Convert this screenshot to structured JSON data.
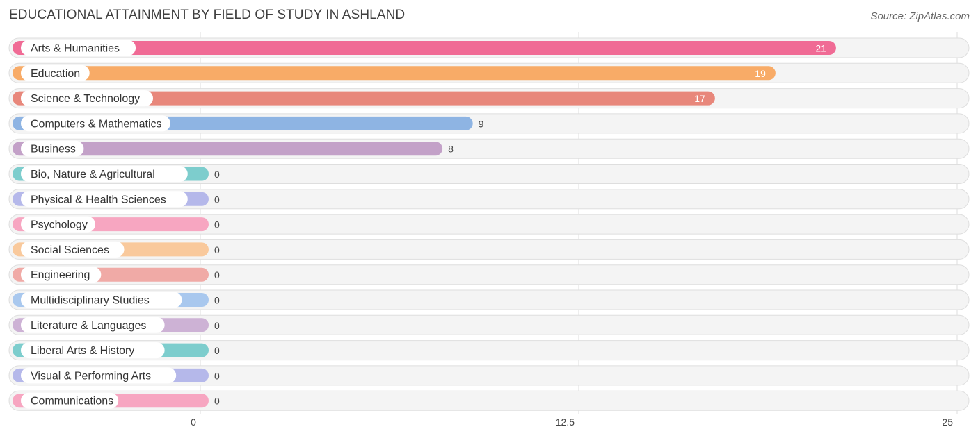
{
  "title": "EDUCATIONAL ATTAINMENT BY FIELD OF STUDY IN ASHLAND",
  "source": "Source: ZipAtlas.com",
  "chart_data": {
    "type": "bar",
    "orientation": "horizontal",
    "categories": [
      "Arts & Humanities",
      "Education",
      "Science & Technology",
      "Computers & Mathematics",
      "Business",
      "Bio, Nature & Agricultural",
      "Physical & Health Sciences",
      "Psychology",
      "Social Sciences",
      "Engineering",
      "Multidisciplinary Studies",
      "Literature & Languages",
      "Liberal Arts & History",
      "Visual & Performing Arts",
      "Communications"
    ],
    "values": [
      21,
      19,
      17,
      9,
      8,
      0,
      0,
      0,
      0,
      0,
      0,
      0,
      0,
      0,
      0
    ],
    "colors": [
      "#f06b95",
      "#f8ab67",
      "#e8877b",
      "#8eb4e3",
      "#c3a1c8",
      "#7dcdcd",
      "#b5b8ea",
      "#f7a6c1",
      "#f9c99c",
      "#f0aaa6",
      "#a9c8ee",
      "#cdb2d5",
      "#7dcdcd",
      "#b5b8ea",
      "#f7a6c1"
    ],
    "xlim": [
      0,
      25
    ],
    "xticks": [
      "0",
      "12.5",
      "25"
    ],
    "grid": true
  }
}
